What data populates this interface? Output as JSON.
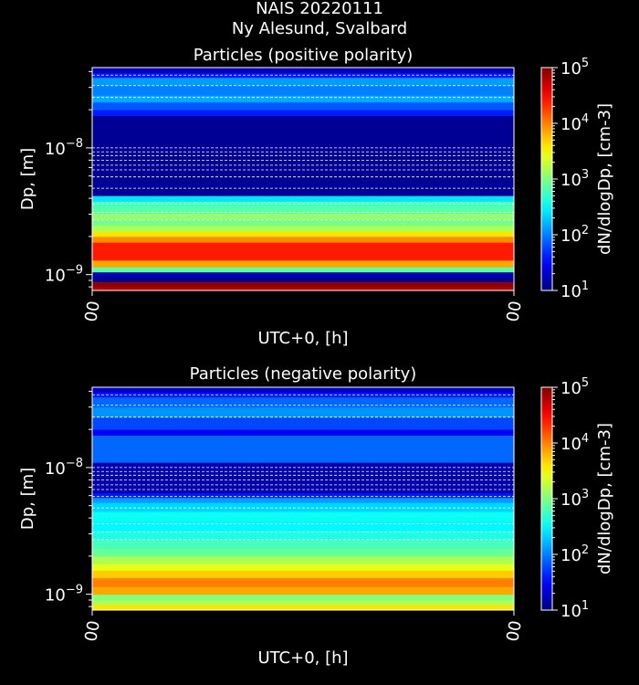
{
  "figure": {
    "title_line1": "NAIS 20220111",
    "title_line2": "Ny Alesund, Svalbard"
  },
  "colormap": "jet",
  "chart_data": [
    {
      "type": "heatmap",
      "title": "Particles (positive polarity)",
      "xlabel": "UTC+0, [h]",
      "ylabel": "Dp, [m]",
      "x_tick_labels": [
        "00",
        "00"
      ],
      "y_scale": "log",
      "y_range_m": [
        7.5e-10,
        4.3e-08
      ],
      "y_tick_labels": [
        {
          "value": 1e-09,
          "base": "10",
          "exp": "−9"
        },
        {
          "value": 1e-08,
          "base": "10",
          "exp": "−8"
        }
      ],
      "grid": true,
      "grid_style": "dashed white horizontal",
      "colorbar": {
        "label": "dN/dlogDp, [cm-3]",
        "scale": "log",
        "range": [
          10,
          100000
        ],
        "tick_labels": [
          {
            "value": 10,
            "base": "10",
            "exp": "1"
          },
          {
            "value": 100,
            "base": "10",
            "exp": "2"
          },
          {
            "value": 1000,
            "base": "10",
            "exp": "3"
          },
          {
            "value": 10000,
            "base": "10",
            "exp": "4"
          },
          {
            "value": 100000,
            "base": "10",
            "exp": "5"
          }
        ]
      },
      "bins": [
        {
          "dp_low": 7.5e-10,
          "dp_high": 8e-10,
          "value": 60000
        },
        {
          "dp_low": 8e-10,
          "dp_high": 8.8e-10,
          "value": 90000
        },
        {
          "dp_low": 8.8e-10,
          "dp_high": 9.6e-10,
          "value": 12
        },
        {
          "dp_low": 9.6e-10,
          "dp_high": 1.05e-09,
          "value": 15
        },
        {
          "dp_low": 1.05e-09,
          "dp_high": 1.15e-09,
          "value": 700
        },
        {
          "dp_low": 1.15e-09,
          "dp_high": 1.3e-09,
          "value": 7000
        },
        {
          "dp_low": 1.3e-09,
          "dp_high": 1.8e-09,
          "value": 25000
        },
        {
          "dp_low": 1.8e-09,
          "dp_high": 2e-09,
          "value": 9000
        },
        {
          "dp_low": 2e-09,
          "dp_high": 2.2e-09,
          "value": 4000
        },
        {
          "dp_low": 2.2e-09,
          "dp_high": 2.45e-09,
          "value": 1500
        },
        {
          "dp_low": 2.45e-09,
          "dp_high": 2.75e-09,
          "value": 900
        },
        {
          "dp_low": 2.75e-09,
          "dp_high": 3.05e-09,
          "value": 1200
        },
        {
          "dp_low": 3.05e-09,
          "dp_high": 3.4e-09,
          "value": 700
        },
        {
          "dp_low": 3.4e-09,
          "dp_high": 3.8e-09,
          "value": 600
        },
        {
          "dp_low": 3.8e-09,
          "dp_high": 4.2e-09,
          "value": 250
        },
        {
          "dp_low": 4.2e-09,
          "dp_high": 4.8e-09,
          "value": 12
        },
        {
          "dp_low": 4.8e-09,
          "dp_high": 1.8e-08,
          "value": 12
        },
        {
          "dp_low": 1.8e-08,
          "dp_high": 2e-08,
          "value": 40
        },
        {
          "dp_low": 2e-08,
          "dp_high": 2.3e-08,
          "value": 70
        },
        {
          "dp_low": 2.3e-08,
          "dp_high": 2.6e-08,
          "value": 150
        },
        {
          "dp_low": 2.6e-08,
          "dp_high": 3.1e-08,
          "value": 100
        },
        {
          "dp_low": 3.1e-08,
          "dp_high": 3.6e-08,
          "value": 130
        },
        {
          "dp_low": 3.6e-08,
          "dp_high": 3.9e-08,
          "value": 40
        },
        {
          "dp_low": 3.9e-08,
          "dp_high": 4.3e-08,
          "value": 18
        }
      ],
      "grid_at_dp": [
        3.75e-08,
        3.1e-08,
        2.5e-08,
        1e-08,
        9.3e-09,
        8.7e-09,
        8e-09,
        7.3e-09,
        6.7e-09,
        5.9e-09,
        4.8e-09,
        3.6e-09,
        3.1e-09,
        2.7e-09
      ]
    },
    {
      "type": "heatmap",
      "title": "Particles (negative polarity)",
      "xlabel": "UTC+0, [h]",
      "ylabel": "Dp, [m]",
      "x_tick_labels": [
        "00",
        "00"
      ],
      "y_scale": "log",
      "y_range_m": [
        7.5e-10,
        4.3e-08
      ],
      "y_tick_labels": [
        {
          "value": 1e-09,
          "base": "10",
          "exp": "−9"
        },
        {
          "value": 1e-08,
          "base": "10",
          "exp": "−8"
        }
      ],
      "grid": true,
      "grid_style": "dashed white horizontal",
      "colorbar": {
        "label": "dN/dlogDp, [cm-3]",
        "scale": "log",
        "range": [
          10,
          100000
        ],
        "tick_labels": [
          {
            "value": 10,
            "base": "10",
            "exp": "1"
          },
          {
            "value": 100,
            "base": "10",
            "exp": "2"
          },
          {
            "value": 1000,
            "base": "10",
            "exp": "3"
          },
          {
            "value": 10000,
            "base": "10",
            "exp": "4"
          },
          {
            "value": 100000,
            "base": "10",
            "exp": "5"
          }
        ]
      },
      "bins": [
        {
          "dp_low": 7.5e-10,
          "dp_high": 8.3e-10,
          "value": 4000
        },
        {
          "dp_low": 8.3e-10,
          "dp_high": 9e-10,
          "value": 1500
        },
        {
          "dp_low": 9e-10,
          "dp_high": 1e-09,
          "value": 1000
        },
        {
          "dp_low": 1e-09,
          "dp_high": 1.15e-09,
          "value": 7000
        },
        {
          "dp_low": 1.15e-09,
          "dp_high": 1.35e-09,
          "value": 10000
        },
        {
          "dp_low": 1.35e-09,
          "dp_high": 1.55e-09,
          "value": 5000
        },
        {
          "dp_low": 1.55e-09,
          "dp_high": 1.75e-09,
          "value": 2500
        },
        {
          "dp_low": 1.75e-09,
          "dp_high": 2e-09,
          "value": 1500
        },
        {
          "dp_low": 2e-09,
          "dp_high": 2.3e-09,
          "value": 800
        },
        {
          "dp_low": 2.3e-09,
          "dp_high": 2.7e-09,
          "value": 600
        },
        {
          "dp_low": 2.7e-09,
          "dp_high": 3.2e-09,
          "value": 400
        },
        {
          "dp_low": 3.2e-09,
          "dp_high": 3.8e-09,
          "value": 300
        },
        {
          "dp_low": 3.8e-09,
          "dp_high": 4.5e-09,
          "value": 350
        },
        {
          "dp_low": 4.5e-09,
          "dp_high": 5.3e-09,
          "value": 220
        },
        {
          "dp_low": 5.3e-09,
          "dp_high": 5.8e-09,
          "value": 130
        },
        {
          "dp_low": 5.8e-09,
          "dp_high": 6.3e-09,
          "value": 40
        },
        {
          "dp_low": 6.3e-09,
          "dp_high": 1.1e-08,
          "value": 15
        },
        {
          "dp_low": 1.1e-08,
          "dp_high": 1.8e-08,
          "value": 80
        },
        {
          "dp_low": 1.8e-08,
          "dp_high": 2e-08,
          "value": 30
        },
        {
          "dp_low": 2e-08,
          "dp_high": 2.5e-08,
          "value": 60
        },
        {
          "dp_low": 2.5e-08,
          "dp_high": 3e-08,
          "value": 120
        },
        {
          "dp_low": 3e-08,
          "dp_high": 3.6e-08,
          "value": 80
        },
        {
          "dp_low": 3.6e-08,
          "dp_high": 3.9e-08,
          "value": 40
        },
        {
          "dp_low": 3.9e-08,
          "dp_high": 4.3e-08,
          "value": 20
        }
      ],
      "grid_at_dp": [
        3.75e-08,
        3.1e-08,
        2.5e-08,
        1e-08,
        9.3e-09,
        8.7e-09,
        8e-09,
        7.3e-09,
        6.7e-09,
        5.9e-09,
        4.8e-09,
        3.6e-09,
        3.1e-09,
        2.7e-09
      ]
    }
  ]
}
